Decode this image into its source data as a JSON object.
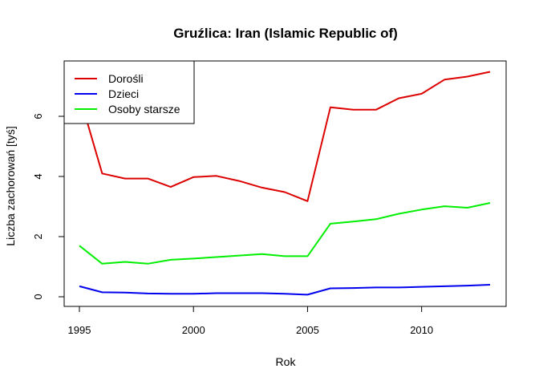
{
  "chart_data": {
    "type": "line",
    "title": "Gruźlica: Iran (Islamic Republic of)",
    "xlabel": "Rok",
    "ylabel": "Liczba zachorowań [tyś]",
    "xlim": [
      1995,
      2013
    ],
    "ylim": [
      0,
      7.5
    ],
    "xticks": [
      1995,
      2000,
      2005,
      2010
    ],
    "yticks": [
      0,
      2,
      4,
      6
    ],
    "grid": false,
    "legend_position": "top-left",
    "x": [
      1995,
      1996,
      1997,
      1998,
      1999,
      2000,
      2001,
      2002,
      2003,
      2004,
      2005,
      2006,
      2007,
      2008,
      2009,
      2010,
      2011,
      2012,
      2013
    ],
    "series": [
      {
        "name": "Dorośli",
        "color": "#dd0000",
        "values": [
          6.7,
          4.1,
          3.93,
          3.93,
          3.65,
          3.98,
          4.02,
          3.85,
          3.63,
          3.48,
          3.18,
          6.3,
          6.22,
          6.22,
          6.6,
          6.75,
          7.22,
          7.32,
          7.48
        ]
      },
      {
        "name": "Dzieci",
        "color": "#0000ee",
        "values": [
          0.35,
          0.15,
          0.14,
          0.11,
          0.1,
          0.1,
          0.12,
          0.12,
          0.12,
          0.1,
          0.07,
          0.28,
          0.29,
          0.31,
          0.31,
          0.33,
          0.35,
          0.37,
          0.4
        ]
      },
      {
        "name": "Osoby starsze",
        "color": "#00ee00",
        "values": [
          1.7,
          1.1,
          1.16,
          1.1,
          1.23,
          1.27,
          1.32,
          1.37,
          1.42,
          1.35,
          1.35,
          2.43,
          2.5,
          2.58,
          2.76,
          2.9,
          3.01,
          2.96,
          3.12
        ]
      }
    ]
  }
}
